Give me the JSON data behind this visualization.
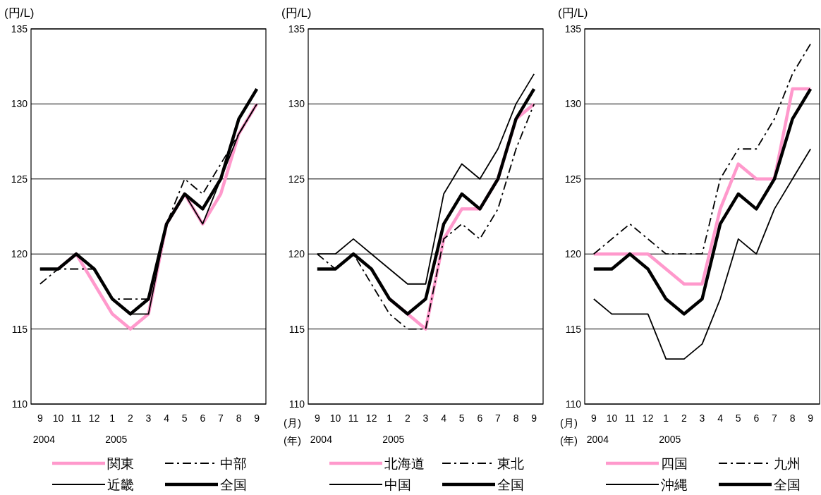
{
  "chart_data": [
    {
      "type": "line",
      "ylabel": "(円/L)",
      "categories": [
        "9\n2004",
        "10",
        "11",
        "12",
        "1\n2005",
        "2",
        "3",
        "4",
        "5",
        "6",
        "7",
        "8",
        "9"
      ],
      "ylim": [
        110,
        135
      ],
      "yticks": [
        110,
        115,
        120,
        125,
        130,
        135
      ],
      "grid": "y",
      "legend": "bottom",
      "series": [
        {
          "name": "関東",
          "color": "#ff99cc",
          "line_style": "solid",
          "values": [
            null,
            119,
            120,
            118,
            116,
            115,
            116,
            122,
            124,
            122,
            124,
            128,
            130
          ]
        },
        {
          "name": "中部",
          "color": "#000000",
          "line_style": "dashdot",
          "values": [
            118,
            119,
            119,
            119,
            117,
            117,
            117,
            122,
            125,
            124,
            126,
            128,
            130
          ]
        },
        {
          "name": "近畿",
          "color": "#000000",
          "line_style": "solid",
          "values": [
            119,
            119,
            120,
            119,
            117,
            116,
            116,
            122,
            124,
            122,
            125,
            128,
            130
          ]
        },
        {
          "name": "全国",
          "color": "#000000",
          "line_style": "solid",
          "values": [
            119,
            119,
            120,
            119,
            117,
            116,
            117,
            122,
            124,
            123,
            125,
            129,
            131
          ]
        }
      ]
    },
    {
      "type": "line",
      "ylabel": "(円/L)",
      "xlabel": "(月)\n(年)",
      "categories": [
        "9\n2004",
        "10",
        "11",
        "12",
        "1\n2005",
        "2",
        "3",
        "4",
        "5",
        "6",
        "7",
        "8",
        "9"
      ],
      "ylim": [
        110,
        135
      ],
      "yticks": [
        110,
        115,
        120,
        125,
        130,
        135
      ],
      "grid": "y",
      "legend": "bottom",
      "series": [
        {
          "name": "北海道",
          "color": "#ff99cc",
          "line_style": "solid",
          "values": [
            null,
            null,
            null,
            null,
            117,
            116,
            115,
            121,
            123,
            123,
            125,
            129,
            130
          ]
        },
        {
          "name": "東北",
          "color": "#000000",
          "line_style": "dashdot",
          "values": [
            120,
            119,
            120,
            118,
            116,
            115,
            115,
            121,
            122,
            121,
            123,
            127,
            130
          ]
        },
        {
          "name": "中国",
          "color": "#000000",
          "line_style": "solid",
          "values": [
            120,
            120,
            121,
            120,
            119,
            118,
            118,
            124,
            126,
            125,
            127,
            130,
            132
          ]
        },
        {
          "name": "全国",
          "color": "#000000",
          "line_style": "solid",
          "values": [
            119,
            119,
            120,
            119,
            117,
            116,
            117,
            122,
            124,
            123,
            125,
            129,
            131
          ]
        }
      ]
    },
    {
      "type": "line",
      "ylabel": "(円/L)",
      "xlabel": "(月)\n(年)",
      "categories": [
        "9\n2004",
        "10",
        "11",
        "12",
        "1\n2005",
        "2",
        "3",
        "4",
        "5",
        "6",
        "7",
        "8",
        "9"
      ],
      "ylim": [
        110,
        135
      ],
      "yticks": [
        110,
        115,
        120,
        125,
        130,
        135
      ],
      "grid": "y",
      "legend": "bottom",
      "series": [
        {
          "name": "四国",
          "color": "#ff99cc",
          "line_style": "solid",
          "values": [
            120,
            120,
            120,
            120,
            119,
            118,
            118,
            123,
            126,
            125,
            125,
            131,
            131
          ]
        },
        {
          "name": "九州",
          "color": "#000000",
          "line_style": "dashdot",
          "values": [
            120,
            121,
            122,
            121,
            120,
            120,
            120,
            125,
            127,
            127,
            129,
            132,
            134
          ]
        },
        {
          "name": "沖縄",
          "color": "#000000",
          "line_style": "solid",
          "values": [
            117,
            116,
            116,
            116,
            113,
            113,
            114,
            117,
            121,
            120,
            123,
            125,
            127
          ]
        },
        {
          "name": "全国",
          "color": "#000000",
          "line_style": "solid",
          "values": [
            119,
            119,
            120,
            119,
            117,
            116,
            117,
            122,
            124,
            123,
            125,
            129,
            131
          ]
        }
      ]
    }
  ]
}
